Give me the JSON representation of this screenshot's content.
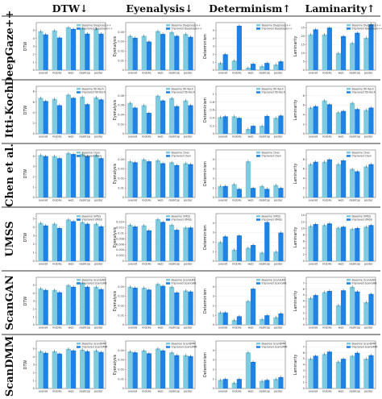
{
  "figure": {
    "columns": [
      {
        "title": "DTW↓",
        "ylabel": "DTW"
      },
      {
        "title": "Eyenalysis↓",
        "ylabel": "Eyenalysis"
      },
      {
        "title": "Determinism↑",
        "ylabel": "Determinism"
      },
      {
        "title": "Laminarity↑",
        "ylabel": "Laminarity"
      }
    ],
    "rows": [
      "DeepGaze++",
      "Itti-Koch",
      "Chen et al.",
      "UMSS",
      "ScanGAN",
      "ScanDMM"
    ],
    "colors": {
      "baseline": "#7ecbe0",
      "improved": "#1f83e6",
      "error": "#222222",
      "axis": "#555555",
      "separator": "#333333"
    }
  },
  "chart_data": [
    {
      "type": "bar",
      "row": "DeepGaze++",
      "metric": "DTW",
      "categories": [
        "overall",
        "mobile",
        "web",
        "desktop",
        "poster"
      ],
      "ylim": [
        0,
        6
      ],
      "yticks": [
        0,
        1,
        2,
        3,
        4,
        5
      ],
      "series": [
        {
          "name": "Baseline DeepGaze++",
          "values": [
            4.9,
            5.0,
            5.4,
            5.3,
            5.2
          ]
        },
        {
          "name": "Improved DeepGaze++",
          "values": [
            4.5,
            4.1,
            5.2,
            4.6,
            4.6
          ]
        }
      ]
    },
    {
      "type": "bar",
      "row": "DeepGaze++",
      "metric": "Eyenalysis",
      "categories": [
        "overall",
        "mobile",
        "web",
        "desktop",
        "poster"
      ],
      "ylim": [
        0,
        0.05
      ],
      "yticks": [
        0,
        0.01,
        0.02,
        0.03,
        0.04
      ],
      "series": [
        {
          "name": "Baseline DeepGaze++",
          "values": [
            0.036,
            0.036,
            0.041,
            0.04,
            0.038
          ]
        },
        {
          "name": "Improved DeepGaze++",
          "values": [
            0.034,
            0.03,
            0.038,
            0.036,
            0.035
          ]
        }
      ]
    },
    {
      "type": "bar",
      "row": "DeepGaze++",
      "metric": "Determinism",
      "categories": [
        "overall",
        "mobile",
        "web",
        "desktop",
        "poster"
      ],
      "ylim": [
        0,
        6
      ],
      "yticks": [
        0,
        1,
        2,
        3,
        4,
        5
      ],
      "series": [
        {
          "name": "Baseline DeepGaze++",
          "values": [
            0.9,
            1.2,
            0.3,
            0.5,
            0.7
          ]
        },
        {
          "name": "Improved DeepGaze++",
          "values": [
            2.0,
            5.6,
            0.8,
            0.9,
            1.1
          ]
        }
      ]
    },
    {
      "type": "bar",
      "row": "DeepGaze++",
      "metric": "Laminarity",
      "categories": [
        "overall",
        "mobile",
        "web",
        "desktop",
        "poster"
      ],
      "ylim": [
        0,
        28
      ],
      "yticks": [
        0,
        5,
        10,
        15,
        20,
        25
      ],
      "series": [
        {
          "name": "Baseline DeepGaze++",
          "values": [
            21,
            21,
            10,
            16,
            19
          ]
        },
        {
          "name": "Improved DeepGaze++",
          "values": [
            24,
            25,
            20,
            22,
            27
          ]
        }
      ]
    },
    {
      "type": "bar",
      "row": "Itti-Koch",
      "metric": "DTW",
      "categories": [
        "overall",
        "mobile",
        "web",
        "desktop",
        "poster"
      ],
      "ylim": [
        0,
        9
      ],
      "yticks": [
        0,
        2,
        4,
        6,
        8
      ],
      "series": [
        {
          "name": "Baseline Itti-Koch",
          "values": [
            6.8,
            6.6,
            7.4,
            7.0,
            6.9
          ]
        },
        {
          "name": "Improved Itti-Koch",
          "values": [
            6.2,
            5.4,
            6.8,
            5.6,
            6.5
          ]
        }
      ]
    },
    {
      "type": "bar",
      "row": "Itti-Koch",
      "metric": "Eyenalysis",
      "categories": [
        "overall",
        "mobile",
        "web",
        "desktop",
        "poster"
      ],
      "ylim": [
        0,
        0.1
      ],
      "yticks": [
        0,
        0.02,
        0.04,
        0.06,
        0.08
      ],
      "series": [
        {
          "name": "Baseline Itti-Koch",
          "values": [
            0.065,
            0.06,
            0.08,
            0.075,
            0.07
          ]
        },
        {
          "name": "Improved Itti-Koch",
          "values": [
            0.055,
            0.044,
            0.07,
            0.058,
            0.06
          ]
        }
      ]
    },
    {
      "type": "bar",
      "row": "Itti-Koch",
      "metric": "Determinism",
      "categories": [
        "overall",
        "mobile",
        "web",
        "desktop",
        "poster"
      ],
      "ylim": [
        0,
        1.2
      ],
      "yticks": [
        0,
        0.2,
        0.4,
        0.6,
        0.8,
        1.0
      ],
      "series": [
        {
          "name": "Baseline Itti-Koch",
          "values": [
            0.42,
            0.44,
            0.12,
            0.2,
            0.4
          ]
        },
        {
          "name": "Improved Itti-Koch",
          "values": [
            0.44,
            0.4,
            0.2,
            0.45,
            0.46
          ]
        }
      ]
    },
    {
      "type": "bar",
      "row": "Itti-Koch",
      "metric": "Laminarity",
      "categories": [
        "overall",
        "mobile",
        "web",
        "desktop",
        "poster"
      ],
      "ylim": [
        0,
        10
      ],
      "yticks": [
        0,
        2,
        4,
        6,
        8
      ],
      "series": [
        {
          "name": "Baseline Itti-Koch",
          "values": [
            5.5,
            7.0,
            4.5,
            6.5,
            5.0
          ]
        },
        {
          "name": "Improved Itti-Koch",
          "values": [
            5.8,
            6.2,
            4.8,
            5.2,
            5.5
          ]
        }
      ]
    },
    {
      "type": "bar",
      "row": "Chen et al.",
      "metric": "DTW",
      "categories": [
        "overall",
        "mobile",
        "web",
        "desktop",
        "poster"
      ],
      "ylim": [
        0,
        4.6
      ],
      "yticks": [
        0,
        1,
        2,
        3,
        4
      ],
      "series": [
        {
          "name": "Baseline Chen",
          "values": [
            4.1,
            4.0,
            4.3,
            4.2,
            4.1
          ]
        },
        {
          "name": "Improved Chen",
          "values": [
            4.0,
            3.8,
            4.2,
            4.0,
            3.8
          ]
        }
      ]
    },
    {
      "type": "bar",
      "row": "Chen et al.",
      "metric": "Eyenalysis",
      "categories": [
        "overall",
        "mobile",
        "web",
        "desktop",
        "poster"
      ],
      "ylim": [
        0,
        0.05
      ],
      "yticks": [
        0,
        0.01,
        0.02,
        0.03,
        0.04
      ],
      "series": [
        {
          "name": "Baseline Chen",
          "values": [
            0.038,
            0.04,
            0.039,
            0.037,
            0.036
          ]
        },
        {
          "name": "Improved Chen",
          "values": [
            0.037,
            0.038,
            0.036,
            0.034,
            0.035
          ]
        }
      ]
    },
    {
      "type": "bar",
      "row": "Chen et al.",
      "metric": "Determinism",
      "categories": [
        "overall",
        "mobile",
        "web",
        "desktop",
        "poster"
      ],
      "ylim": [
        0,
        5
      ],
      "yticks": [
        0,
        1,
        2,
        3,
        4
      ],
      "series": [
        {
          "name": "Baseline Chen",
          "values": [
            1.2,
            1.4,
            3.8,
            1.2,
            1.3
          ]
        },
        {
          "name": "Improved Chen",
          "values": [
            1.2,
            0.9,
            1.0,
            0.9,
            1.0
          ]
        }
      ]
    },
    {
      "type": "bar",
      "row": "Chen et al.",
      "metric": "Laminarity",
      "categories": [
        "overall",
        "mobile",
        "web",
        "desktop",
        "poster"
      ],
      "ylim": [
        0,
        10
      ],
      "yticks": [
        0,
        2,
        4,
        6,
        8
      ],
      "series": [
        {
          "name": "Baseline Chen",
          "values": [
            7.0,
            7.5,
            7.0,
            6.0,
            6.5
          ]
        },
        {
          "name": "Improved Chen",
          "values": [
            7.5,
            8.0,
            7.8,
            5.5,
            7.0
          ]
        }
      ]
    },
    {
      "type": "bar",
      "row": "UMSS",
      "metric": "DTW",
      "categories": [
        "overall",
        "mobile",
        "web",
        "desktop",
        "poster"
      ],
      "ylim": [
        0,
        5.6
      ],
      "yticks": [
        0,
        1,
        2,
        3,
        4,
        5
      ],
      "series": [
        {
          "name": "Baseline UMSS",
          "values": [
            4.5,
            4.4,
            4.9,
            4.6,
            4.4
          ]
        },
        {
          "name": "Improved UMSS",
          "values": [
            4.2,
            3.9,
            4.7,
            4.4,
            4.1
          ]
        }
      ]
    },
    {
      "type": "bar",
      "row": "UMSS",
      "metric": "Eyenalysis",
      "categories": [
        "overall",
        "mobile",
        "web",
        "desktop",
        "poster"
      ],
      "ylim": [
        0,
        0.017
      ],
      "yticks": [
        0,
        0.002,
        0.004,
        0.006,
        0.008,
        0.01,
        0.012,
        0.014
      ],
      "series": [
        {
          "name": "Baseline UMSS",
          "values": [
            0.013,
            0.0128,
            0.015,
            0.013,
            0.012
          ]
        },
        {
          "name": "Improved UMSS",
          "values": [
            0.0124,
            0.011,
            0.014,
            0.0112,
            0.012
          ]
        }
      ]
    },
    {
      "type": "bar",
      "row": "UMSS",
      "metric": "Determinism",
      "categories": [
        "overall",
        "mobile",
        "web",
        "desktop",
        "poster"
      ],
      "ylim": [
        0,
        5
      ],
      "yticks": [
        0,
        1,
        2,
        3,
        4
      ],
      "series": [
        {
          "name": "Baseline UMSS",
          "values": [
            2.0,
            1.2,
            1.4,
            0.9,
            1.0
          ]
        },
        {
          "name": "Improved UMSS",
          "values": [
            2.6,
            2.7,
            1.7,
            4.1,
            3.0
          ]
        }
      ]
    },
    {
      "type": "bar",
      "row": "UMSS",
      "metric": "Laminarity",
      "categories": [
        "overall",
        "mobile",
        "web",
        "desktop",
        "poster"
      ],
      "ylim": [
        0,
        14.5
      ],
      "yticks": [
        0,
        2,
        4,
        6,
        8,
        10,
        12,
        14
      ],
      "series": [
        {
          "name": "Baseline UMSS",
          "values": [
            10.7,
            11.0,
            10.2,
            9.8,
            10.5
          ]
        },
        {
          "name": "Improved UMSS",
          "values": [
            11.3,
            11.5,
            10.5,
            10.1,
            11.0
          ]
        }
      ]
    },
    {
      "type": "bar",
      "row": "ScanGAN",
      "metric": "DTW",
      "categories": [
        "overall",
        "mobile",
        "web",
        "desktop",
        "poster"
      ],
      "ylim": [
        0,
        6
      ],
      "yticks": [
        0,
        1,
        2,
        3,
        4,
        5
      ],
      "series": [
        {
          "name": "Baseline ScanGAN",
          "values": [
            4.6,
            4.4,
            5.0,
            5.3,
            4.8
          ]
        },
        {
          "name": "Improved ScanGAN",
          "values": [
            4.4,
            4.1,
            4.8,
            4.8,
            4.5
          ]
        }
      ]
    },
    {
      "type": "bar",
      "row": "ScanGAN",
      "metric": "Eyenalysis",
      "categories": [
        "overall",
        "mobile",
        "web",
        "desktop",
        "poster"
      ],
      "ylim": [
        0,
        0.05
      ],
      "yticks": [
        0,
        0.01,
        0.02,
        0.03,
        0.04
      ],
      "series": [
        {
          "name": "Baseline ScanGAN",
          "values": [
            0.04,
            0.039,
            0.043,
            0.04,
            0.036
          ]
        },
        {
          "name": "Improved ScanGAN",
          "values": [
            0.039,
            0.037,
            0.041,
            0.034,
            0.035
          ]
        }
      ]
    },
    {
      "type": "bar",
      "row": "ScanGAN",
      "metric": "Determinism",
      "categories": [
        "overall",
        "mobile",
        "web",
        "desktop",
        "poster"
      ],
      "ylim": [
        0,
        5
      ],
      "yticks": [
        0,
        1,
        2,
        3,
        4
      ],
      "series": [
        {
          "name": "Baseline ScanGAN",
          "values": [
            1.3,
            0.5,
            2.5,
            0.6,
            0.8
          ]
        },
        {
          "name": "Improved ScanGAN",
          "values": [
            1.3,
            0.9,
            3.8,
            1.0,
            1.2
          ]
        }
      ]
    },
    {
      "type": "bar",
      "row": "ScanGAN",
      "metric": "Laminarity",
      "categories": [
        "overall",
        "mobile",
        "web",
        "desktop",
        "poster"
      ],
      "ylim": [
        0,
        8
      ],
      "yticks": [
        0,
        1,
        2,
        3,
        4,
        5,
        6,
        7
      ],
      "series": [
        {
          "name": "Baseline ScanGAN",
          "values": [
            4.5,
            5.5,
            3.3,
            6.4,
            3.8
          ]
        },
        {
          "name": "Improved ScanGAN",
          "values": [
            5.0,
            5.7,
            5.8,
            5.6,
            5.2
          ]
        }
      ]
    },
    {
      "type": "bar",
      "row": "ScanDMM",
      "metric": "DTW",
      "categories": [
        "overall",
        "mobile",
        "web",
        "desktop",
        "poster"
      ],
      "ylim": [
        0,
        6
      ],
      "yticks": [
        0,
        1,
        2,
        3,
        4,
        5
      ],
      "series": [
        {
          "name": "Baseline ScanDMM",
          "values": [
            4.7,
            4.7,
            5.0,
            4.9,
            4.8
          ]
        },
        {
          "name": "Improved ScanDMM",
          "values": [
            4.5,
            4.4,
            4.8,
            4.7,
            4.6
          ]
        }
      ]
    },
    {
      "type": "bar",
      "row": "ScanDMM",
      "metric": "Eyenalysis",
      "categories": [
        "overall",
        "mobile",
        "web",
        "desktop",
        "poster"
      ],
      "ylim": [
        0,
        0.05
      ],
      "yticks": [
        0,
        0.01,
        0.02,
        0.03,
        0.04
      ],
      "series": [
        {
          "name": "Baseline ScanDMM",
          "values": [
            0.039,
            0.04,
            0.042,
            0.038,
            0.035
          ]
        },
        {
          "name": "Improved ScanDMM",
          "values": [
            0.038,
            0.037,
            0.04,
            0.035,
            0.034
          ]
        }
      ]
    },
    {
      "type": "bar",
      "row": "ScanDMM",
      "metric": "Determinism",
      "categories": [
        "overall",
        "mobile",
        "web",
        "desktop",
        "poster"
      ],
      "ylim": [
        0,
        5
      ],
      "yticks": [
        0,
        1,
        2,
        3,
        4
      ],
      "series": [
        {
          "name": "Baseline ScanDMM",
          "values": [
            0.9,
            0.6,
            3.8,
            0.8,
            1.0
          ]
        },
        {
          "name": "Improved ScanDMM",
          "values": [
            1.0,
            1.0,
            2.8,
            0.9,
            1.2
          ]
        }
      ]
    },
    {
      "type": "bar",
      "row": "ScanDMM",
      "metric": "Laminarity",
      "categories": [
        "overall",
        "mobile",
        "web",
        "desktop",
        "poster"
      ],
      "ylim": [
        0,
        8
      ],
      "yticks": [
        0,
        1,
        2,
        3,
        4,
        5,
        6,
        7
      ],
      "series": [
        {
          "name": "Baseline ScanDMM",
          "values": [
            5.0,
            5.8,
            4.5,
            5.5,
            5.0
          ]
        },
        {
          "name": "Improved ScanDMM",
          "values": [
            5.5,
            6.2,
            5.0,
            6.0,
            5.6
          ]
        }
      ]
    }
  ]
}
